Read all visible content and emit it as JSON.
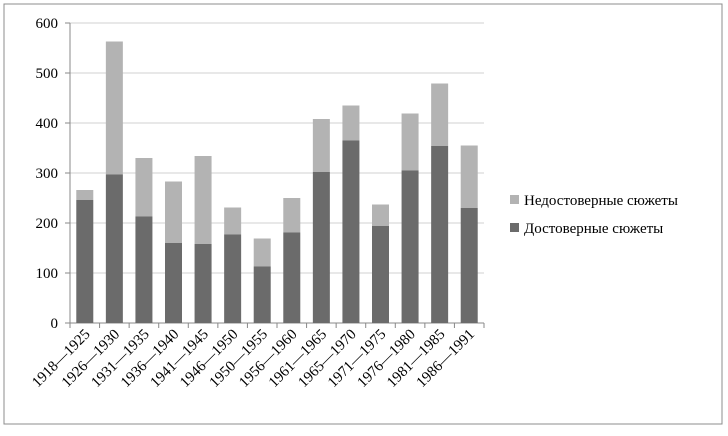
{
  "chart_data": {
    "type": "stacked-bar",
    "categories": [
      "1918—1925",
      "1926—1930",
      "1931—1935",
      "1936—1940",
      "1941—1945",
      "1946—1950",
      "1950—1955",
      "1956—1960",
      "1961—1965",
      "1965—1970",
      "1971—1975",
      "1976—1980",
      "1981—1985",
      "1986—1991"
    ],
    "series": [
      {
        "name": "Достоверные сюжеты",
        "color": "#6b6b6b",
        "values": [
          246,
          297,
          213,
          160,
          158,
          177,
          113,
          181,
          302,
          365,
          194,
          305,
          354,
          230
        ]
      },
      {
        "name": "Недостоверные сюжеты",
        "color": "#b3b3b3",
        "values": [
          20,
          266,
          117,
          123,
          176,
          54,
          56,
          69,
          106,
          70,
          43,
          114,
          125,
          125
        ]
      }
    ],
    "ylim": [
      0,
      600
    ],
    "yticks": [
      0,
      100,
      200,
      300,
      400,
      500,
      600
    ],
    "grid": true
  }
}
